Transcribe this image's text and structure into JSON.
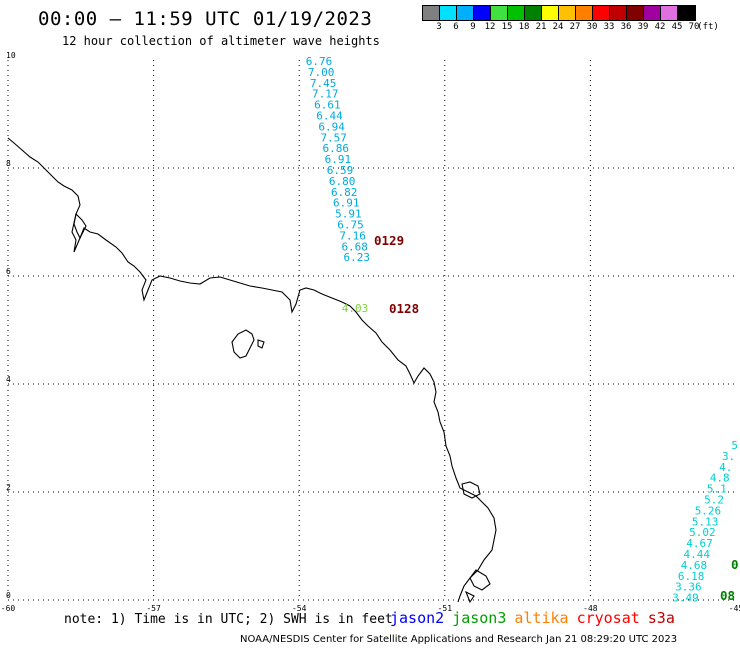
{
  "header": {
    "title": "00:00 – 11:59 UTC 01/19/2023",
    "subtitle": "12 hour collection of altimeter wave heights"
  },
  "legend": {
    "unit": "(ft)",
    "levels": [
      {
        "label": "3",
        "color": "#808080"
      },
      {
        "label": "6",
        "color": "#00e0ff"
      },
      {
        "label": "9",
        "color": "#00b0ff"
      },
      {
        "label": "12",
        "color": "#0000ff"
      },
      {
        "label": "15",
        "color": "#40e040"
      },
      {
        "label": "18",
        "color": "#00c000"
      },
      {
        "label": "21",
        "color": "#008000"
      },
      {
        "label": "24",
        "color": "#ffff00"
      },
      {
        "label": "27",
        "color": "#ffc000"
      },
      {
        "label": "30",
        "color": "#ff8000"
      },
      {
        "label": "33",
        "color": "#ff0000"
      },
      {
        "label": "36",
        "color": "#c00000"
      },
      {
        "label": "39",
        "color": "#800000"
      },
      {
        "label": "42",
        "color": "#a000a0"
      },
      {
        "label": "45",
        "color": "#e070e0"
      },
      {
        "label": "70",
        "color": "#000000"
      }
    ]
  },
  "map": {
    "x_ticks": [
      "-60",
      "-57",
      "-54",
      "-51",
      "-48",
      "-45"
    ],
    "y_ticks": [
      "10",
      "8",
      "6",
      "4",
      "2",
      "0"
    ],
    "tracks": [
      {
        "color": "#00aadd",
        "values": [
          "6.76",
          "7.00",
          "7.45",
          "7.17",
          "6.61",
          "6.44",
          "6.94",
          "7.57",
          "6.86",
          "6.91",
          "6.59",
          "6.80",
          "6.82",
          "6.91",
          "5.91",
          "6.75",
          "7.16",
          "6.68",
          "6.23"
        ]
      },
      {
        "color": "#80d040",
        "values": [
          "4.03"
        ]
      },
      {
        "color": "#00d0d0",
        "values": [
          "5",
          "3.",
          "4.",
          "4.8",
          "5.1",
          "5.2",
          "5.26",
          "5.13",
          "5.02",
          "4.67",
          "4.44",
          "4.68",
          "6.18",
          "3.36",
          "3.49"
        ]
      }
    ],
    "pass_labels": [
      {
        "text": "0129",
        "color": "#800000"
      },
      {
        "text": "0128",
        "color": "#800000"
      },
      {
        "text": "0",
        "color": "#008000"
      },
      {
        "text": "08",
        "color": "#008000"
      }
    ]
  },
  "footer": {
    "note": "note: 1) Time is in UTC; 2) SWH is in feet",
    "satellites": [
      {
        "name": "jason2",
        "color": "#0000ff"
      },
      {
        "name": "jason3",
        "color": "#00a000"
      },
      {
        "name": "altika",
        "color": "#ff8000"
      },
      {
        "name": "cryosat",
        "color": "#ff0000"
      },
      {
        "name": "s3a",
        "color": "#c00000"
      }
    ],
    "credit": "NOAA/NESDIS Center for Satellite Applications and Research    Jan 21 08:29:20 UTC 2023"
  }
}
